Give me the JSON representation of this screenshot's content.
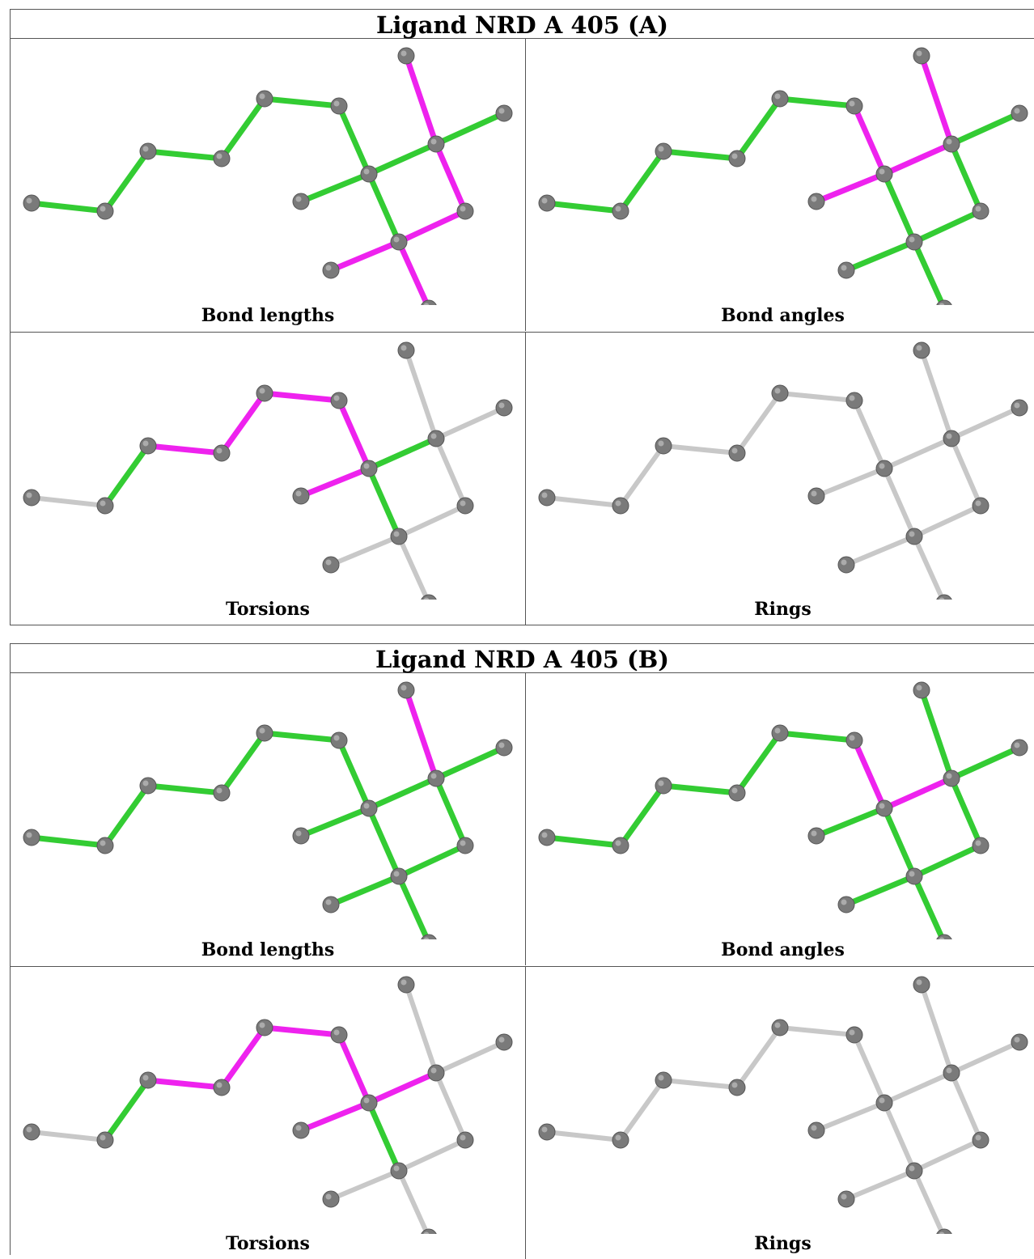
{
  "blocks": [
    {
      "title": "Ligand NRD A 405 (A)",
      "panels": [
        {
          "caption": "Bond lengths",
          "colors": [
            "g",
            "g",
            "g",
            "g",
            "g",
            "g",
            "g",
            "g",
            "g",
            "m",
            "g",
            "m",
            "m",
            "m",
            "m"
          ]
        },
        {
          "caption": "Bond angles",
          "colors": [
            "g",
            "g",
            "g",
            "g",
            "g",
            "m",
            "m",
            "m",
            "g",
            "m",
            "g",
            "g",
            "g",
            "g",
            "g"
          ]
        },
        {
          "caption": "Torsions",
          "colors": [
            "n",
            "g",
            "m",
            "m",
            "m",
            "m",
            "g",
            "m",
            "g",
            "n",
            "n",
            "n",
            "n",
            "n",
            "n"
          ]
        },
        {
          "caption": "Rings",
          "colors": [
            "n",
            "n",
            "n",
            "n",
            "n",
            "n",
            "n",
            "n",
            "n",
            "n",
            "n",
            "n",
            "n",
            "n",
            "n"
          ]
        }
      ]
    },
    {
      "title": "Ligand NRD A 405 (B)",
      "panels": [
        {
          "caption": "Bond lengths",
          "colors": [
            "g",
            "g",
            "g",
            "g",
            "g",
            "g",
            "g",
            "g",
            "g",
            "m",
            "g",
            "g",
            "g",
            "g",
            "g"
          ]
        },
        {
          "caption": "Bond angles",
          "colors": [
            "g",
            "g",
            "g",
            "g",
            "g",
            "m",
            "m",
            "g",
            "g",
            "g",
            "g",
            "g",
            "g",
            "g",
            "g"
          ]
        },
        {
          "caption": "Torsions",
          "colors": [
            "n",
            "g",
            "m",
            "m",
            "m",
            "m",
            "m",
            "m",
            "g",
            "n",
            "n",
            "n",
            "n",
            "n",
            "n"
          ]
        },
        {
          "caption": "Rings",
          "colors": [
            "n",
            "n",
            "n",
            "n",
            "n",
            "n",
            "n",
            "n",
            "n",
            "n",
            "n",
            "n",
            "n",
            "n",
            "n"
          ]
        }
      ]
    }
  ],
  "legend_colors": {
    "g": "#33cc33",
    "m": "#ee22ee",
    "n": "#c8c8c8",
    "atom": "#7a7a7a"
  }
}
